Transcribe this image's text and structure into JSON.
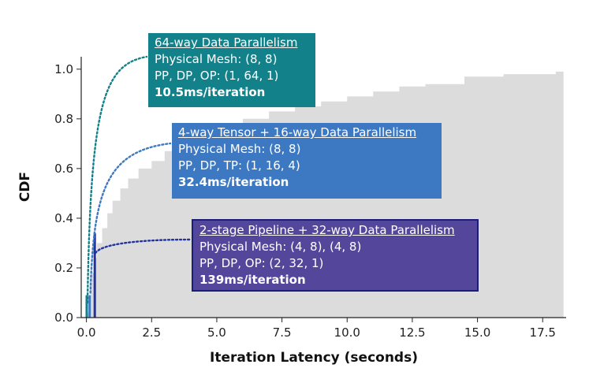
{
  "chart_data": {
    "type": "area",
    "xlabel": "Iteration Latency (seconds)",
    "ylabel": "CDF",
    "xlim": [
      -0.2,
      18.4
    ],
    "ylim": [
      0,
      1.05
    ],
    "x_ticks": [
      "0.0",
      "2.5",
      "5.0",
      "7.5",
      "10.0",
      "12.5",
      "15.0",
      "17.5"
    ],
    "y_ticks": [
      "0.0",
      "0.2",
      "0.4",
      "0.6",
      "0.8",
      "1.0"
    ],
    "grid": false,
    "colors": {
      "cdf_fill": "#dcdcdc",
      "config_1": "#13818a",
      "config_2": "#3d79c2",
      "config_3": "#2233a0"
    },
    "cdf_points": [
      {
        "x": 0.0,
        "y": 0.0
      },
      {
        "x": 0.05,
        "y": 0.02
      },
      {
        "x": 0.1,
        "y": 0.08
      },
      {
        "x": 0.15,
        "y": 0.13
      },
      {
        "x": 0.2,
        "y": 0.18
      },
      {
        "x": 0.3,
        "y": 0.24
      },
      {
        "x": 0.4,
        "y": 0.3
      },
      {
        "x": 0.6,
        "y": 0.36
      },
      {
        "x": 0.8,
        "y": 0.42
      },
      {
        "x": 1.0,
        "y": 0.47
      },
      {
        "x": 1.3,
        "y": 0.52
      },
      {
        "x": 1.6,
        "y": 0.56
      },
      {
        "x": 2.0,
        "y": 0.6
      },
      {
        "x": 2.5,
        "y": 0.63
      },
      {
        "x": 3.0,
        "y": 0.67
      },
      {
        "x": 3.5,
        "y": 0.7
      },
      {
        "x": 4.0,
        "y": 0.72
      },
      {
        "x": 4.5,
        "y": 0.74
      },
      {
        "x": 5.0,
        "y": 0.76
      },
      {
        "x": 5.5,
        "y": 0.78
      },
      {
        "x": 6.0,
        "y": 0.8
      },
      {
        "x": 7.0,
        "y": 0.83
      },
      {
        "x": 8.0,
        "y": 0.85
      },
      {
        "x": 9.0,
        "y": 0.87
      },
      {
        "x": 10.0,
        "y": 0.89
      },
      {
        "x": 11.0,
        "y": 0.91
      },
      {
        "x": 12.0,
        "y": 0.93
      },
      {
        "x": 13.0,
        "y": 0.94
      },
      {
        "x": 14.5,
        "y": 0.97
      },
      {
        "x": 16.0,
        "y": 0.98
      },
      {
        "x": 18.0,
        "y": 0.99
      },
      {
        "x": 18.3,
        "y": 1.0
      }
    ],
    "configs": [
      {
        "title": "64-way Data Parallelism",
        "lines": [
          "Physical Mesh: (8, 8)",
          "PP, DP, OP: (1, 64, 1)"
        ],
        "speed": "10.5ms/iteration",
        "x": 0.0105,
        "cdf": 0.09
      },
      {
        "title": "4-way Tensor + 16-way Data Parallelism",
        "lines": [
          "Physical Mesh: (8, 8)",
          "PP, DP, TP: (1, 16, 4)"
        ],
        "speed": "32.4ms/iteration",
        "x": 0.0324,
        "cdf": 0.09
      },
      {
        "title": "2-stage Pipeline + 32-way Data Parallelism",
        "lines": [
          "Physical Mesh: (4, 8), (4, 8)",
          "PP, DP, OP: (2, 32, 1)"
        ],
        "speed": "139ms/iteration",
        "x": 0.139,
        "cdf": 0.34
      }
    ]
  }
}
